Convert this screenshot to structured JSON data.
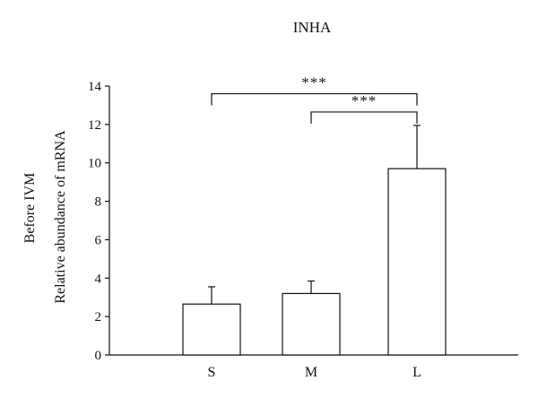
{
  "chart_data": {
    "type": "bar",
    "title": "INHA",
    "side_label": "Before IVM",
    "ylabel": "Relative abundance of mRNA",
    "xlabel": "",
    "categories": [
      "S",
      "M",
      "L"
    ],
    "values": [
      2.65,
      3.2,
      9.7
    ],
    "error_upper": [
      3.55,
      3.85,
      11.95
    ],
    "ylim": [
      0,
      14
    ],
    "yticks": [
      "0",
      "2",
      "4",
      "6",
      "8",
      "10",
      "12",
      "14"
    ],
    "significance": [
      {
        "from": "S",
        "to": "L",
        "label": "***"
      },
      {
        "from": "M",
        "to": "L",
        "label": "***"
      }
    ],
    "grid": false,
    "legend": "none",
    "bar_fill": "#ffffff",
    "stroke_color": "#111111"
  }
}
